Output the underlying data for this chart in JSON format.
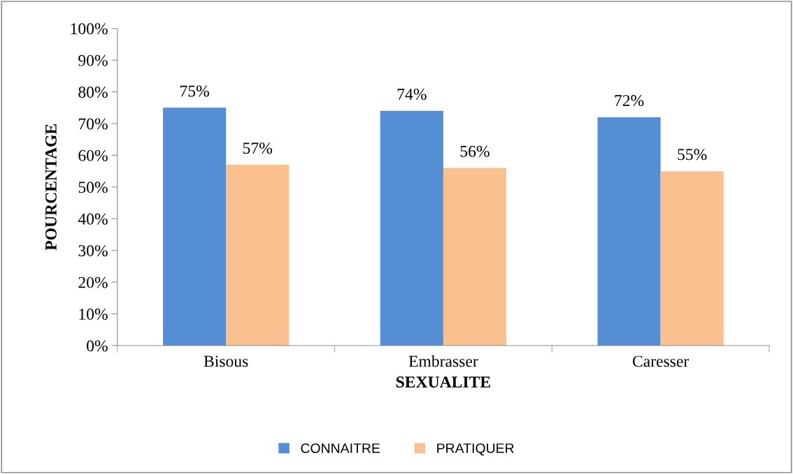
{
  "chart_data": {
    "type": "bar",
    "xlabel": "SEXUALITE",
    "ylabel": "POURCENTAGE",
    "categories": [
      "Bisous",
      "Embrasser",
      "Caresser"
    ],
    "series": [
      {
        "name": "CONNAITRE",
        "color": "#558ed5",
        "values": [
          75,
          74,
          72
        ],
        "value_labels": [
          "75%",
          "74%",
          "72%"
        ]
      },
      {
        "name": "PRATIQUER",
        "color": "#fac090",
        "values": [
          57,
          56,
          55
        ],
        "value_labels": [
          "57%",
          "56%",
          "55%"
        ]
      }
    ],
    "ylim": [
      0,
      100
    ],
    "yticks": [
      {
        "value": 0,
        "label": "0%"
      },
      {
        "value": 10,
        "label": "10%"
      },
      {
        "value": 20,
        "label": "20%"
      },
      {
        "value": 30,
        "label": "30%"
      },
      {
        "value": 40,
        "label": "40%"
      },
      {
        "value": 50,
        "label": "50%"
      },
      {
        "value": 60,
        "label": "60%"
      },
      {
        "value": 70,
        "label": "70%"
      },
      {
        "value": 80,
        "label": "80%"
      },
      {
        "value": 90,
        "label": "90%"
      },
      {
        "value": 100,
        "label": "100%"
      }
    ],
    "grid": false,
    "legend": "bottom"
  }
}
